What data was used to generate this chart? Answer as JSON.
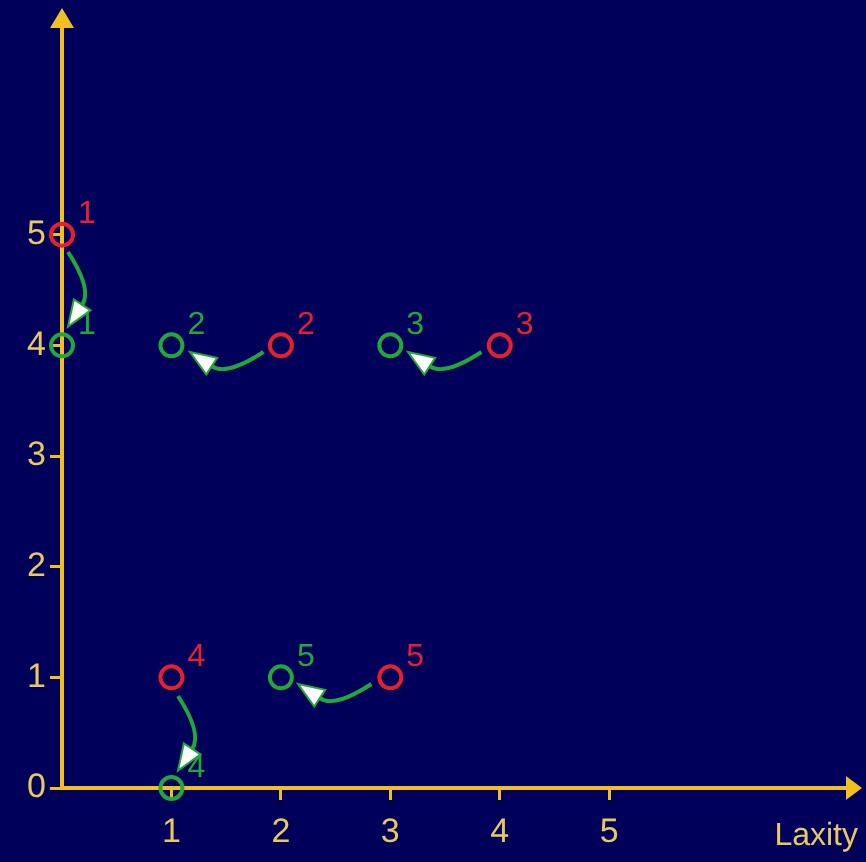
{
  "chart_data": {
    "type": "scatter",
    "xlabel": "Laxity",
    "xlim": [
      0,
      7.2
    ],
    "ylim": [
      0,
      6.9
    ],
    "xticks": [
      1,
      2,
      3,
      4,
      5
    ],
    "yticks": [
      0,
      1,
      2,
      3,
      4,
      5
    ],
    "grid": false,
    "legend": false,
    "marker": "circle",
    "series": [
      {
        "color": "#e8202a",
        "x": [
          0,
          2,
          4,
          1,
          3
        ],
        "values": [
          5,
          4,
          4,
          1,
          1
        ]
      },
      {
        "color": "#22a838",
        "x": [
          0,
          1,
          3,
          1,
          2
        ],
        "values": [
          4,
          4,
          4,
          0,
          1
        ]
      }
    ],
    "annotations": [
      {
        "text": "1",
        "x": 0,
        "y": 5
      },
      {
        "text": "2",
        "x": 2,
        "y": 4
      },
      {
        "text": "3",
        "x": 4,
        "y": 4
      },
      {
        "text": "4",
        "x": 1,
        "y": 1
      },
      {
        "text": "5",
        "x": 3,
        "y": 1
      },
      {
        "text": "1",
        "x": 0,
        "y": 4
      },
      {
        "text": "2",
        "x": 1,
        "y": 4
      },
      {
        "text": "3",
        "x": 3,
        "y": 4
      },
      {
        "text": "4",
        "x": 1,
        "y": 0
      },
      {
        "text": "5",
        "x": 2,
        "y": 1
      }
    ]
  }
}
